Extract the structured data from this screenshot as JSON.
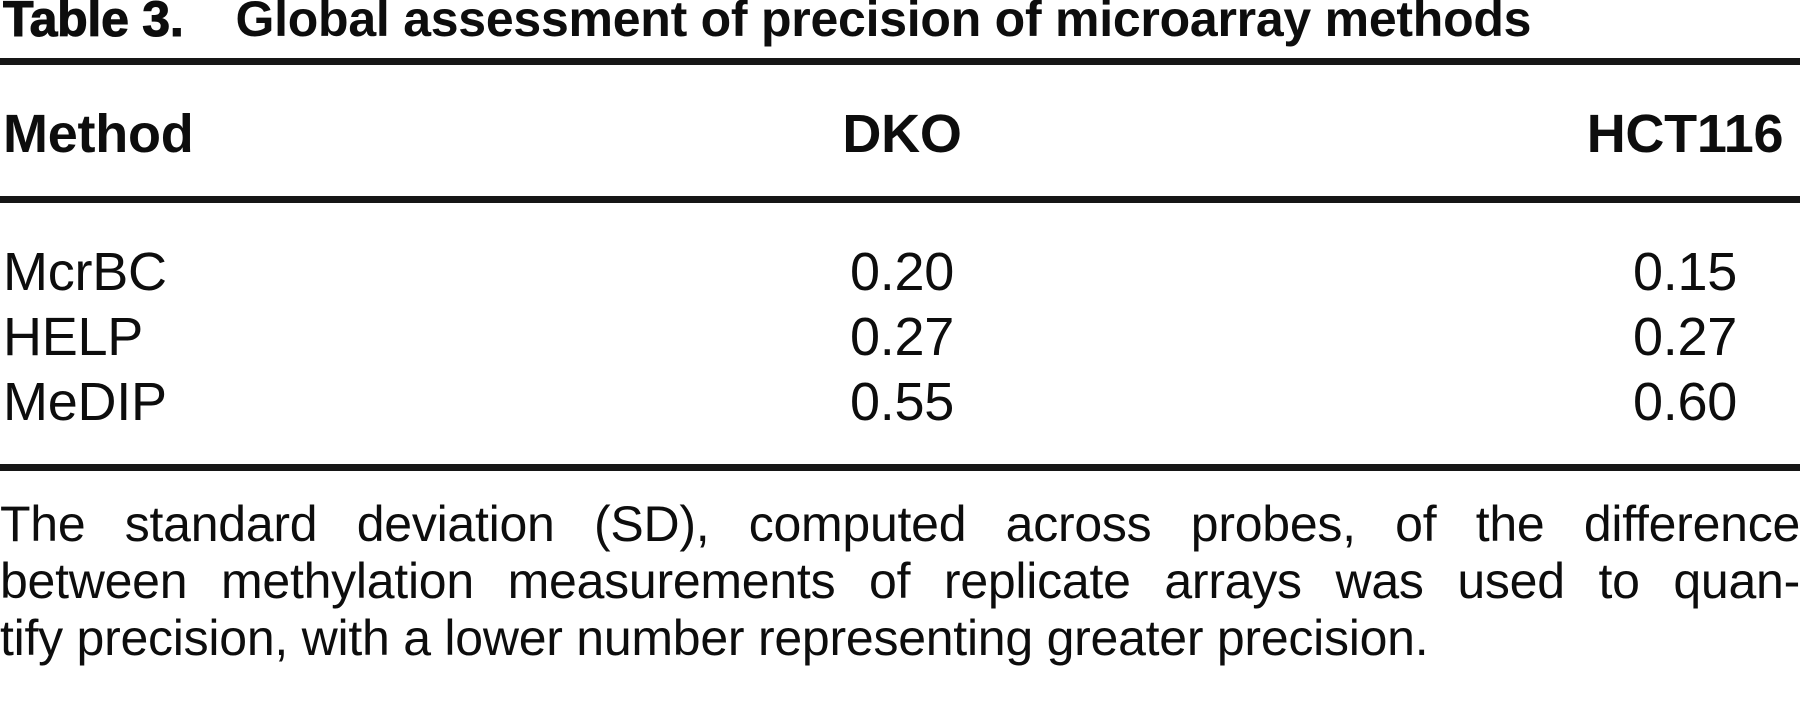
{
  "caption": {
    "label": "Table 3.",
    "title": "Global assessment of precision of microarray methods"
  },
  "table": {
    "columns": [
      "Method",
      "DKO",
      "HCT116"
    ],
    "rows": [
      {
        "method": "McrBC",
        "dko": "0.20",
        "hct116": "0.15"
      },
      {
        "method": "HELP",
        "dko": "0.27",
        "hct116": "0.27"
      },
      {
        "method": "MeDIP",
        "dko": "0.55",
        "hct116": "0.60"
      }
    ]
  },
  "footnote": {
    "lines": [
      "The standard deviation (SD), computed across probes, of the difference",
      "between methylation measurements of replicate arrays was used to quan-",
      "tify precision, with a lower number representing greater precision."
    ],
    "text": "The standard deviation (SD), computed across probes, of the difference between methylation measurements of replicate arrays was used to quantify precision, with a lower number representing greater precision."
  },
  "colors": {
    "background": "#ffffff",
    "text": "#0d0d0d",
    "rule": "#161616"
  }
}
